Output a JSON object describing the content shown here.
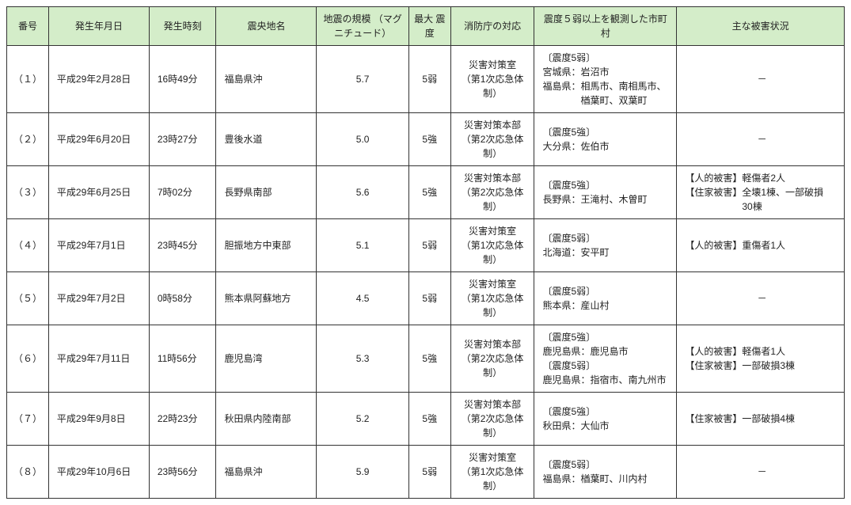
{
  "table": {
    "header_bg": "#d4edc9",
    "border_color": "#333333",
    "columns": [
      "番号",
      "発生年月日",
      "発生時刻",
      "震央地名",
      "地震の規模\n（マグニチュード）",
      "最大\n震度",
      "消防庁の対応",
      "震度５弱以上を観測した市町村",
      "主な被害状況"
    ],
    "rows": [
      {
        "num": "（１）",
        "date": "平成29年2月28日",
        "time": "16時49分",
        "epicenter": "福島県沖",
        "magnitude": "5.7",
        "max_intensity": "5弱",
        "response": "災害対策室\n（第1次応急体制）",
        "municipalities": "〔震度5弱〕\n宮城県：岩沼市\n福島県：相馬市、南相馬市、\n　　　　楢葉町、双葉町",
        "damage": "－"
      },
      {
        "num": "（２）",
        "date": "平成29年6月20日",
        "time": "23時27分",
        "epicenter": "豊後水道",
        "magnitude": "5.0",
        "max_intensity": "5強",
        "response": "災害対策本部\n（第2次応急体制）",
        "municipalities": "〔震度5強〕\n大分県：佐伯市",
        "damage": "－"
      },
      {
        "num": "（３）",
        "date": "平成29年6月25日",
        "time": "7時02分",
        "epicenter": "長野県南部",
        "magnitude": "5.6",
        "max_intensity": "5強",
        "response": "災害対策本部\n（第2次応急体制）",
        "municipalities": "〔震度5強〕\n長野県：王滝村、木曽町",
        "damage": "【人的被害】軽傷者2人\n【住家被害】全壊1棟、一部破損\n　　　　　　30棟"
      },
      {
        "num": "（４）",
        "date": "平成29年7月1日",
        "time": "23時45分",
        "epicenter": "胆振地方中東部",
        "magnitude": "5.1",
        "max_intensity": "5弱",
        "response": "災害対策室\n（第1次応急体制）",
        "municipalities": "〔震度5弱〕\n北海道：安平町",
        "damage": "【人的被害】重傷者1人"
      },
      {
        "num": "（５）",
        "date": "平成29年7月2日",
        "time": "0時58分",
        "epicenter": "熊本県阿蘇地方",
        "magnitude": "4.5",
        "max_intensity": "5弱",
        "response": "災害対策室\n（第1次応急体制）",
        "municipalities": "〔震度5弱〕\n熊本県：産山村",
        "damage": "－"
      },
      {
        "num": "（６）",
        "date": "平成29年7月11日",
        "time": "11時56分",
        "epicenter": "鹿児島湾",
        "magnitude": "5.3",
        "max_intensity": "5強",
        "response": "災害対策本部\n（第2次応急体制）",
        "municipalities": "〔震度5強〕\n鹿児島県：鹿児島市\n〔震度5弱〕\n鹿児島県：指宿市、南九州市",
        "damage": "【人的被害】軽傷者1人\n【住家被害】一部破損3棟"
      },
      {
        "num": "（７）",
        "date": "平成29年9月8日",
        "time": "22時23分",
        "epicenter": "秋田県内陸南部",
        "magnitude": "5.2",
        "max_intensity": "5強",
        "response": "災害対策本部\n（第2次応急体制）",
        "municipalities": "〔震度5強〕\n秋田県：大仙市",
        "damage": "【住家被害】一部破損4棟"
      },
      {
        "num": "（８）",
        "date": "平成29年10月6日",
        "time": "23時56分",
        "epicenter": "福島県沖",
        "magnitude": "5.9",
        "max_intensity": "5弱",
        "response": "災害対策室\n（第1次応急体制）",
        "municipalities": "〔震度5弱〕\n福島県：楢葉町、川内村",
        "damage": "－"
      }
    ]
  }
}
